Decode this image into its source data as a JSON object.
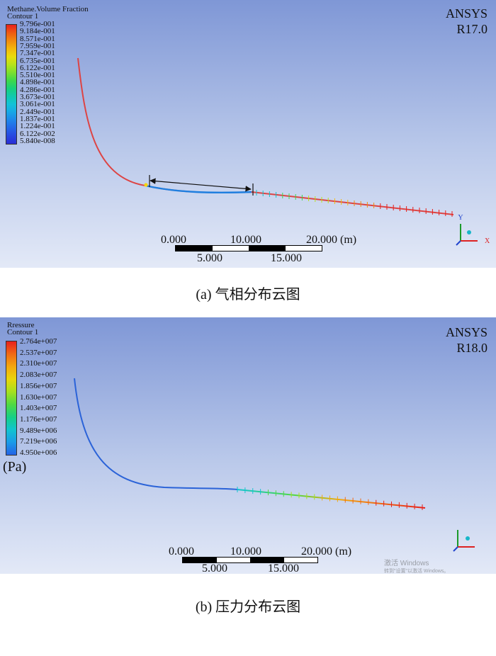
{
  "panel_a": {
    "legend_title_1": "Methane.Volume Fraction",
    "legend_title_2": "Contour 1",
    "legend_values": [
      "9.796e-001",
      "9.184e-001",
      "8.571e-001",
      "7.959e-001",
      "7.347e-001",
      "6.735e-001",
      "6.122e-001",
      "5.510e-001",
      "4.898e-001",
      "4.286e-001",
      "3.673e-001",
      "3.061e-001",
      "2.449e-001",
      "1.837e-001",
      "1.224e-001",
      "6.122e-002",
      "5.840e-008"
    ],
    "brand_1": "ANSYS",
    "brand_2": "R17.0",
    "scale_top": [
      "0.000",
      "10.000",
      "20.000 (m)"
    ],
    "scale_bottom": [
      "5.000",
      "15.000"
    ],
    "axis_label": "Y",
    "axis_label_x": "X",
    "caption": "(a) 气相分布云图",
    "colors": [
      "#e8201b",
      "#ee5a14",
      "#f08a10",
      "#f3b70d",
      "#e9dc0c",
      "#b8e21a",
      "#7ddf2e",
      "#3fd84a",
      "#18d07a",
      "#10c9ad",
      "#11c2d8",
      "#18a7e6",
      "#1e86ea",
      "#2366e8",
      "#2747e0",
      "#2a2ed6"
    ]
  },
  "panel_b": {
    "legend_title_1": "Rressure",
    "legend_title_2": "Contour 1",
    "legend_values": [
      "2.764e+007",
      "2.537e+007",
      "2.310e+007",
      "2.083e+007",
      "1.856e+007",
      "1.630e+007",
      "1.403e+007",
      "1.176e+007",
      "9.489e+006",
      "7.219e+006",
      "4.950e+006"
    ],
    "unit": "(Pa)",
    "brand_1": "ANSYS",
    "brand_2": "R18.0",
    "scale_top": [
      "0.000",
      "10.000",
      "20.000 (m)"
    ],
    "scale_bottom": [
      "5.000",
      "15.000"
    ],
    "watermark_1": "激活 Windows",
    "watermark_2": "转到\"设置\"以激活 Windows。",
    "caption": "(b) 压力分布云图",
    "colors": [
      "#e8201b",
      "#f06a14",
      "#f3a80e",
      "#e8d60c",
      "#a6e020",
      "#4fd944",
      "#16cf86",
      "#11c4cf",
      "#1a9be8",
      "#2463e6"
    ]
  }
}
